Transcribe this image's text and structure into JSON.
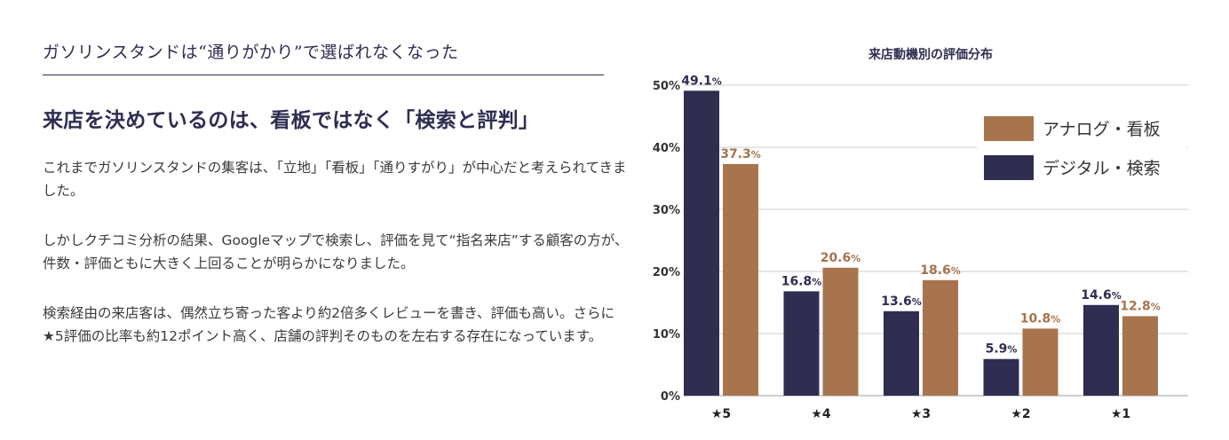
{
  "left": {
    "section_title": "ガソリンスタンドは“通りがかり”で選ばれなくなった",
    "headline": "来店を決めているのは、看板ではなく「検索と評判」",
    "paragraphs": [
      "これまでガソリンスタンドの集客は、「立地」「看板」「通りすがり」が中心だと考えられてきました。",
      "しかしクチコミ分析の結果、Googleマップで検索し、評価を見て“指名来店”する顧客の方が、件数・評価ともに大きく上回ることが明らかになりました。",
      "検索経由の来店客は、偶然立ち寄った客より約2倍多くレビューを書き、評価も高い。さらに★5評価の比率も約12ポイント高く、店舗の評判そのものを左右する存在になっています。"
    ]
  },
  "chart_data": {
    "type": "bar",
    "title": "来店動機別の評価分布",
    "categories": [
      "★5",
      "★4",
      "★3",
      "★2",
      "★1"
    ],
    "series": [
      {
        "name": "デジタル・検索",
        "color": "#2f2d50",
        "values": [
          49.1,
          16.8,
          13.6,
          5.9,
          14.6
        ]
      },
      {
        "name": "アナログ・看板",
        "color": "#a8744d",
        "values": [
          37.3,
          20.6,
          18.6,
          10.8,
          12.8
        ]
      }
    ],
    "legend_order": [
      "アナログ・看板",
      "デジタル・検索"
    ],
    "legend_position": "top-right",
    "value_suffix": "%",
    "ylim": [
      0,
      50
    ],
    "yticks": [
      0,
      10,
      20,
      30,
      40,
      50
    ],
    "ytick_labels": [
      "0%",
      "10%",
      "20%",
      "30%",
      "40%",
      "50%"
    ],
    "xlabel": "",
    "ylabel": "",
    "grid": true
  }
}
